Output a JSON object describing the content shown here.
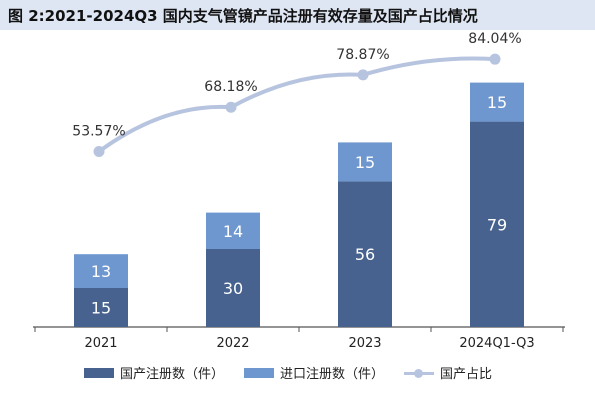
{
  "title": "图 2:2021-2024Q3 国内支气管镜产品注册有效存量及国产占比情况",
  "colors": {
    "domestic": "#47628f",
    "imported": "#6e97cf",
    "ratio_line": "#b7c4df",
    "axis": "#555555",
    "title_bg": "#dfe6f3"
  },
  "legend": {
    "domestic": "国产注册数（件）",
    "imported": "进口注册数（件）",
    "ratio": "国产占比"
  },
  "chart_data": {
    "type": "bar",
    "stacked": true,
    "categories": [
      "2021",
      "2022",
      "2023",
      "2024Q1-Q3"
    ],
    "series": [
      {
        "name": "国产注册数（件）",
        "values": [
          15,
          30,
          56,
          79
        ]
      },
      {
        "name": "进口注册数（件）",
        "values": [
          13,
          14,
          15,
          15
        ]
      }
    ],
    "line_series": {
      "name": "国产占比",
      "values": [
        53.57,
        68.18,
        78.87,
        84.04
      ],
      "labels": [
        "53.57%",
        "68.18%",
        "78.87%",
        "84.04%"
      ]
    },
    "legend_position": "bottom",
    "grid": false
  }
}
